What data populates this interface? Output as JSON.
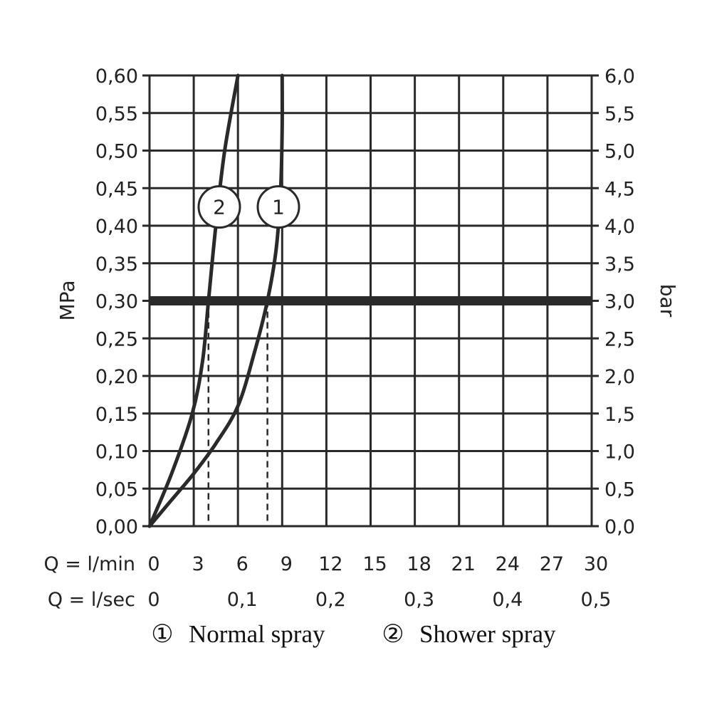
{
  "chart_data": {
    "type": "line",
    "left_axis": {
      "label": "MPa",
      "ticks": [
        "0,00",
        "0,05",
        "0,10",
        "0,15",
        "0,20",
        "0,25",
        "0,30",
        "0,35",
        "0,40",
        "0,45",
        "0,50",
        "0,55",
        "0,60"
      ],
      "range": [
        0,
        0.6
      ]
    },
    "right_axis": {
      "label": "bar",
      "ticks": [
        "0,0",
        "0,5",
        "1,0",
        "1,5",
        "2,0",
        "2,5",
        "3,0",
        "3,5",
        "4,0",
        "4,5",
        "5,0",
        "5,5",
        "6,0"
      ],
      "range": [
        0,
        6
      ]
    },
    "x_axis_lmin": {
      "label": "Q = l/min",
      "ticks": [
        "0",
        "3",
        "6",
        "9",
        "12",
        "15",
        "18",
        "21",
        "24",
        "27",
        "30"
      ],
      "range": [
        0,
        30
      ]
    },
    "x_axis_lsec": {
      "label": "Q = l/sec",
      "ticks": [
        {
          "value": 0,
          "text": "0"
        },
        {
          "value": 0.1,
          "text": "0,1"
        },
        {
          "value": 0.2,
          "text": "0,2"
        },
        {
          "value": 0.3,
          "text": "0,3"
        },
        {
          "value": 0.4,
          "text": "0,4"
        },
        {
          "value": 0.5,
          "text": "0,5"
        }
      ]
    },
    "grid": true,
    "reference_line": {
      "y": 0.3
    },
    "series": [
      {
        "name": "Normal spray",
        "marker": "1",
        "x": [
          0,
          1.5,
          3,
          4.5,
          6,
          7.1,
          8,
          8.6,
          8.9,
          9.0,
          9.0
        ],
        "y": [
          0,
          0.035,
          0.07,
          0.11,
          0.16,
          0.23,
          0.3,
          0.37,
          0.45,
          0.53,
          0.6
        ]
      },
      {
        "name": "Shower spray",
        "marker": "2",
        "x": [
          0,
          1.5,
          2.9,
          3.6,
          4.0,
          4.5,
          5.1,
          6.0
        ],
        "y": [
          0,
          0.07,
          0.15,
          0.22,
          0.3,
          0.4,
          0.5,
          0.6
        ]
      }
    ],
    "dashed_markers": [
      {
        "series": "Shower spray",
        "x": 4.0,
        "y": 0.3
      },
      {
        "series": "Normal spray",
        "x": 8.0,
        "y": 0.3
      }
    ],
    "legend": {
      "position": "bottom",
      "items": [
        {
          "symbol": "①",
          "text": "Normal spray"
        },
        {
          "symbol": "②",
          "text": "Shower spray"
        }
      ]
    }
  }
}
